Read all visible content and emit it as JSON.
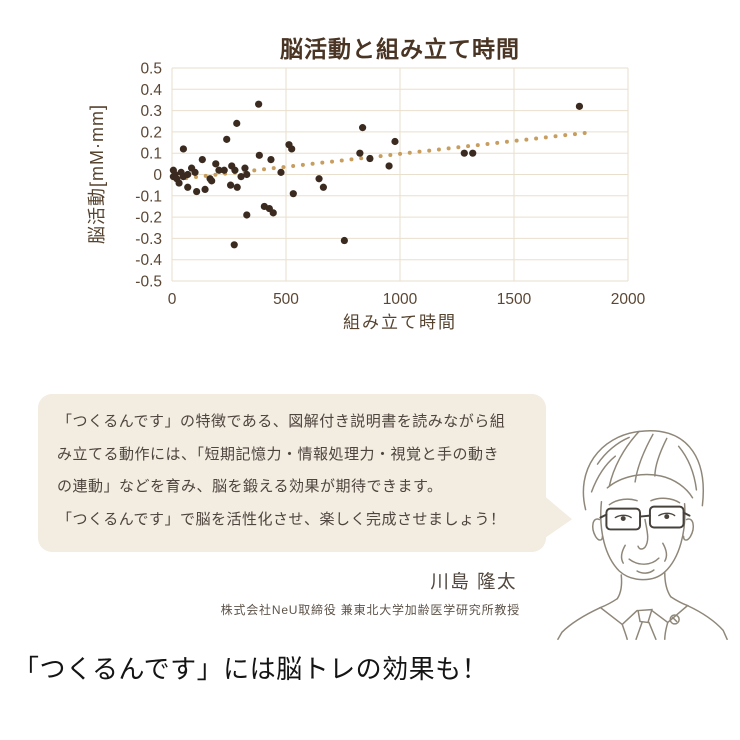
{
  "chart_data": {
    "type": "scatter",
    "title": "脳活動と組み立て時間",
    "xlabel": "組み立て時間",
    "ylabel": "脳活動[mM·mm]",
    "xlim": [
      0,
      2000
    ],
    "ylim": [
      -0.5,
      0.5
    ],
    "x_ticks": [
      0,
      500,
      1000,
      1500,
      2000
    ],
    "y_ticks": [
      0.5,
      0.4,
      0.3,
      0.2,
      0.1,
      0,
      -0.1,
      -0.2,
      -0.3,
      -0.4,
      -0.5
    ],
    "grid": "on",
    "legend": "none",
    "points": [
      [
        6,
        0.02
      ],
      [
        13,
        0
      ],
      [
        6,
        -0.01
      ],
      [
        21,
        -0.02
      ],
      [
        31,
        -0.04
      ],
      [
        40,
        0.01
      ],
      [
        50,
        -0.01
      ],
      [
        50,
        0.12
      ],
      [
        69,
        0
      ],
      [
        69,
        -0.06
      ],
      [
        86,
        0.03
      ],
      [
        101,
        0.01
      ],
      [
        108,
        -0.08
      ],
      [
        133,
        0.07
      ],
      [
        145,
        -0.07
      ],
      [
        167,
        -0.02
      ],
      [
        174,
        -0.03
      ],
      [
        192,
        0.05
      ],
      [
        206,
        0.02
      ],
      [
        229,
        0.02
      ],
      [
        240,
        0.165
      ],
      [
        257,
        -0.05
      ],
      [
        262,
        0.04
      ],
      [
        276,
        0.02
      ],
      [
        284,
        0.24
      ],
      [
        286,
        -0.06
      ],
      [
        303,
        -0.01
      ],
      [
        320,
        0.03
      ],
      [
        328,
        0
      ],
      [
        328,
        -0.19
      ],
      [
        273,
        -0.33
      ],
      [
        383,
        0.09
      ],
      [
        380,
        0.33
      ],
      [
        405,
        -0.15
      ],
      [
        427,
        -0.16
      ],
      [
        434,
        0.07
      ],
      [
        444,
        -0.18
      ],
      [
        478,
        0.01
      ],
      [
        513,
        0.14
      ],
      [
        525,
        0.12
      ],
      [
        532,
        -0.09
      ],
      [
        645,
        -0.02
      ],
      [
        664,
        -0.06
      ],
      [
        756,
        -0.31
      ],
      [
        824,
        0.1
      ],
      [
        836,
        0.22
      ],
      [
        868,
        0.075
      ],
      [
        952,
        0.04
      ],
      [
        978,
        0.155
      ],
      [
        1282,
        0.1
      ],
      [
        1319,
        0.1
      ],
      [
        1787,
        0.32
      ]
    ],
    "trend_line": {
      "style": "dotted",
      "x_start": 20,
      "y_start": -0.022,
      "x_end": 1810,
      "y_end": 0.195,
      "dots": 43
    },
    "colors": {
      "point": "#3b2a1f",
      "trend": "#c79e5f",
      "grid": "#e9dfcd",
      "tick_text": "#5b4734",
      "title_text": "#4a3423"
    }
  },
  "quote": {
    "lines": [
      "「つくるんです」の特徴である、図解付き説明書を読みながら組",
      "み立てる動作には、「短期記憶力・情報処理力・視覚と手の動き",
      "の連動」などを育み、脳を鍛える効果が期待できます。",
      "「つくるんです」で脳を活性化させ、楽しく完成させましょう！"
    ]
  },
  "expert": {
    "name": "川島 隆太",
    "title": "株式会社NeU取締役 兼東北大学加齢医学研究所教授"
  },
  "headline": "「つくるんです」には脳トレの効果も！"
}
